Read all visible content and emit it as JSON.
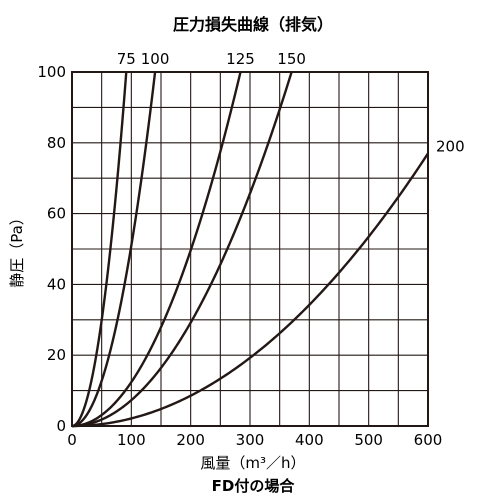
{
  "chart_data": {
    "type": "line",
    "title": "圧力損失曲線（排気）",
    "caption": "FD付の場合",
    "xlabel": "風量（m³／h）",
    "ylabel": "静圧（Pa）",
    "xlim": [
      0,
      600
    ],
    "ylim": [
      0,
      100
    ],
    "xticks": [
      0,
      100,
      200,
      300,
      400,
      500,
      600
    ],
    "yticks": [
      0,
      20,
      40,
      60,
      80,
      100
    ],
    "x_grid_step": 50,
    "y_grid_step": 10,
    "grid": true,
    "series": [
      {
        "name": "75",
        "k": 0.01195
      },
      {
        "name": "100",
        "k": 0.0051
      },
      {
        "name": "125",
        "k": 0.00124
      },
      {
        "name": "150",
        "k": 0.00073
      },
      {
        "name": "200",
        "k": 0.0002139
      }
    ]
  }
}
